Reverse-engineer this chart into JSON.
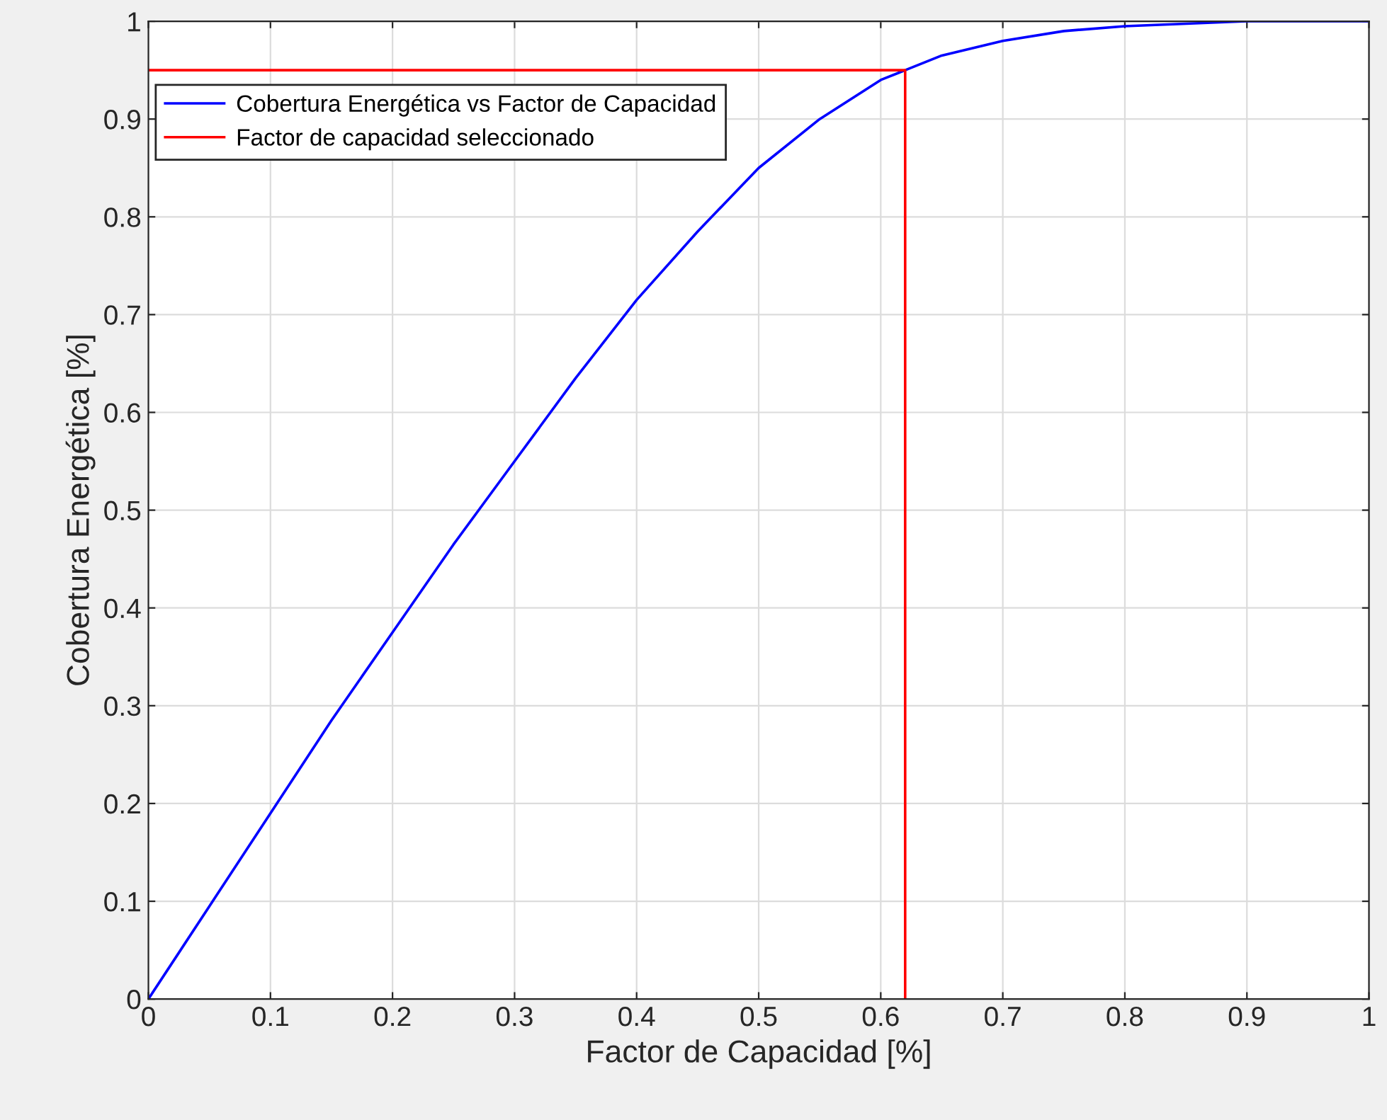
{
  "chart_data": {
    "type": "line",
    "xlabel": "Factor de Capacidad [%]",
    "ylabel": "Cobertura Energética [%]",
    "series": [
      {
        "name": "Cobertura Energética vs Factor de Capacidad",
        "color": "#0000ff",
        "x": [
          0,
          0.05,
          0.1,
          0.15,
          0.2,
          0.25,
          0.3,
          0.35,
          0.4,
          0.45,
          0.5,
          0.55,
          0.6,
          0.62,
          0.65,
          0.7,
          0.75,
          0.8,
          0.9,
          1
        ],
        "values": [
          0,
          0.095,
          0.19,
          0.285,
          0.375,
          0.465,
          0.55,
          0.635,
          0.715,
          0.785,
          0.85,
          0.9,
          0.94,
          0.95,
          0.965,
          0.98,
          0.99,
          0.995,
          1,
          1
        ]
      },
      {
        "name": "Factor de capacidad seleccionado",
        "color": "#ff0000",
        "x": [
          0,
          0.62,
          0.62
        ],
        "values": [
          0.95,
          0.95,
          0
        ]
      }
    ],
    "xlim": [
      0,
      1
    ],
    "ylim": [
      0,
      1
    ],
    "xticks": [
      0,
      0.1,
      0.2,
      0.3,
      0.4,
      0.5,
      0.6,
      0.7,
      0.8,
      0.9,
      1
    ],
    "yticks": [
      0,
      0.1,
      0.2,
      0.3,
      0.4,
      0.5,
      0.6,
      0.7,
      0.8,
      0.9,
      1
    ],
    "grid": true,
    "legend": "top left",
    "marker": "none",
    "line_style": "solid"
  }
}
